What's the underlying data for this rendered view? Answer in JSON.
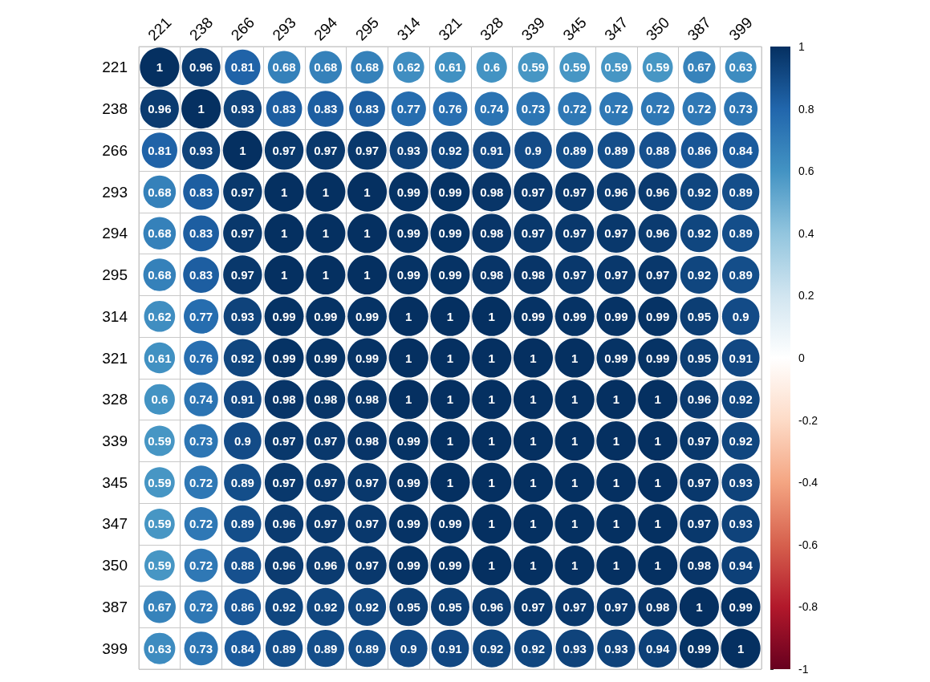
{
  "chart_data": {
    "type": "heatmap",
    "categories": [
      "221",
      "238",
      "266",
      "293",
      "294",
      "295",
      "314",
      "321",
      "328",
      "339",
      "345",
      "347",
      "350",
      "387",
      "399"
    ],
    "y_categories": [
      "221",
      "238",
      "266",
      "293",
      "294",
      "295",
      "314",
      "321",
      "328",
      "339",
      "345",
      "347",
      "350",
      "387",
      "399"
    ],
    "cells": [
      [
        1,
        0.96,
        0.81,
        0.68,
        0.68,
        0.68,
        0.62,
        0.61,
        0.6,
        0.59,
        0.59,
        0.59,
        0.59,
        0.67,
        0.63
      ],
      [
        0.96,
        1,
        0.93,
        0.83,
        0.83,
        0.83,
        0.77,
        0.76,
        0.74,
        0.73,
        0.72,
        0.72,
        0.72,
        0.72,
        0.73
      ],
      [
        0.81,
        0.93,
        1,
        0.97,
        0.97,
        0.97,
        0.93,
        0.92,
        0.91,
        0.9,
        0.89,
        0.89,
        0.88,
        0.86,
        0.84
      ],
      [
        0.68,
        0.83,
        0.97,
        1,
        1,
        1,
        0.99,
        0.99,
        0.98,
        0.97,
        0.97,
        0.96,
        0.96,
        0.92,
        0.89
      ],
      [
        0.68,
        0.83,
        0.97,
        1,
        1,
        1,
        0.99,
        0.99,
        0.98,
        0.97,
        0.97,
        0.97,
        0.96,
        0.92,
        0.89
      ],
      [
        0.68,
        0.83,
        0.97,
        1,
        1,
        1,
        0.99,
        0.99,
        0.98,
        0.98,
        0.97,
        0.97,
        0.97,
        0.92,
        0.89
      ],
      [
        0.62,
        0.77,
        0.93,
        0.99,
        0.99,
        0.99,
        1,
        1,
        1,
        0.99,
        0.99,
        0.99,
        0.99,
        0.95,
        0.9
      ],
      [
        0.61,
        0.76,
        0.92,
        0.99,
        0.99,
        0.99,
        1,
        1,
        1,
        1,
        1,
        0.99,
        0.99,
        0.95,
        0.91
      ],
      [
        0.6,
        0.74,
        0.91,
        0.98,
        0.98,
        0.98,
        1,
        1,
        1,
        1,
        1,
        1,
        1,
        0.96,
        0.92
      ],
      [
        0.59,
        0.73,
        0.9,
        0.97,
        0.97,
        0.98,
        0.99,
        1,
        1,
        1,
        1,
        1,
        1,
        0.97,
        0.92
      ],
      [
        0.59,
        0.72,
        0.89,
        0.97,
        0.97,
        0.97,
        0.99,
        1,
        1,
        1,
        1,
        1,
        1,
        0.97,
        0.93
      ],
      [
        0.59,
        0.72,
        0.89,
        0.96,
        0.97,
        0.97,
        0.99,
        0.99,
        1,
        1,
        1,
        1,
        1,
        0.97,
        0.93
      ],
      [
        0.59,
        0.72,
        0.88,
        0.96,
        0.96,
        0.97,
        0.99,
        0.99,
        1,
        1,
        1,
        1,
        1,
        0.98,
        0.94
      ],
      [
        0.67,
        0.72,
        0.86,
        0.92,
        0.92,
        0.92,
        0.95,
        0.95,
        0.96,
        0.97,
        0.97,
        0.97,
        0.98,
        1,
        0.99
      ],
      [
        0.63,
        0.73,
        0.84,
        0.89,
        0.89,
        0.89,
        0.9,
        0.91,
        0.92,
        0.92,
        0.93,
        0.93,
        0.94,
        0.99,
        1
      ]
    ],
    "clim": [
      -1,
      1
    ],
    "cticks": [
      -1,
      -0.8,
      -0.6,
      -0.4,
      -0.2,
      0,
      0.2,
      0.4,
      0.6,
      0.8,
      1
    ],
    "data_labels": true,
    "grid": true,
    "marker": "circle"
  }
}
